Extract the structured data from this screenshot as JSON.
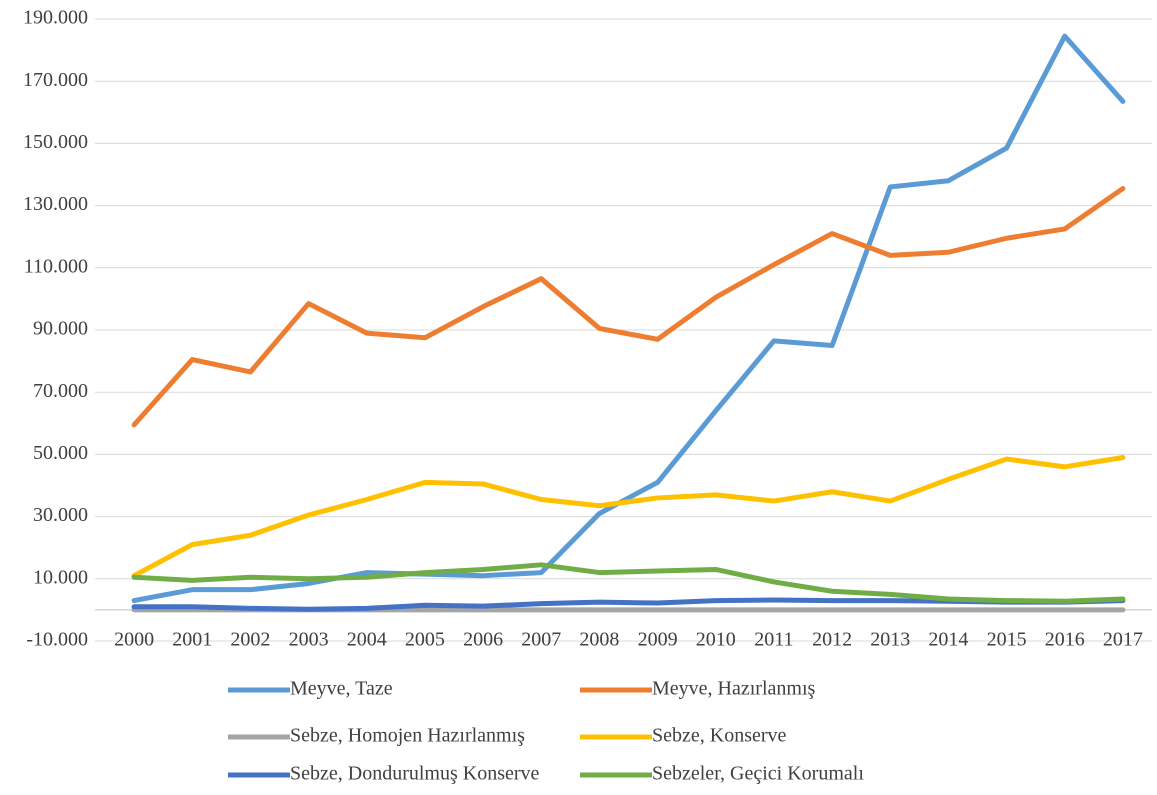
{
  "chart_data": {
    "type": "line",
    "categories": [
      "2000",
      "2001",
      "2002",
      "2003",
      "2004",
      "2005",
      "2006",
      "2007",
      "2008",
      "2009",
      "2010",
      "2011",
      "2012",
      "2013",
      "2014",
      "2015",
      "2016",
      "2017"
    ],
    "series": [
      {
        "name": "Meyve, Taze",
        "color": "#5b9bd5",
        "values": [
          3000,
          6500,
          6500,
          8500,
          12000,
          11500,
          11000,
          12000,
          31000,
          41000,
          64000,
          86500,
          85000,
          136000,
          138000,
          148500,
          184500,
          163500
        ]
      },
      {
        "name": "Meyve, Hazırlanmış",
        "color": "#ed7d31",
        "values": [
          59500,
          80500,
          76500,
          98500,
          89000,
          87500,
          97500,
          106500,
          90500,
          87000,
          100500,
          111000,
          121000,
          114000,
          115000,
          119500,
          122500,
          135500
        ]
      },
      {
        "name": "Sebze, Homojen Hazırlanmış",
        "color": "#a5a5a5",
        "values": [
          0,
          0,
          0,
          0,
          0,
          0,
          0,
          0,
          0,
          0,
          0,
          0,
          0,
          0,
          0,
          0,
          0,
          0
        ]
      },
      {
        "name": "Sebze, Konserve",
        "color": "#ffc000",
        "values": [
          11000,
          21000,
          24000,
          30500,
          35500,
          41000,
          40500,
          35500,
          33500,
          36000,
          37000,
          35000,
          38000,
          35000,
          42000,
          48500,
          46000,
          49000
        ]
      },
      {
        "name": "Sebze, Dondurulmuş Konserve",
        "color": "#4472c4",
        "values": [
          1000,
          1000,
          500,
          200,
          500,
          1500,
          1200,
          2000,
          2500,
          2200,
          3000,
          3200,
          3000,
          3000,
          2800,
          2500,
          2500,
          3000
        ]
      },
      {
        "name": "Sebzeler, Geçici Korumalı",
        "color": "#70ad47",
        "values": [
          10500,
          9500,
          10500,
          10000,
          10500,
          12000,
          13000,
          14500,
          12000,
          12500,
          13000,
          9000,
          6000,
          5000,
          3500,
          3000,
          2800,
          3500
        ]
      }
    ],
    "ylim": [
      -10000,
      190000
    ],
    "yticks": [
      {
        "value": -10000,
        "label": "-10.000"
      },
      {
        "value": 10000,
        "label": "10.000"
      },
      {
        "value": 30000,
        "label": "30.000"
      },
      {
        "value": 50000,
        "label": "50.000"
      },
      {
        "value": 70000,
        "label": "70.000"
      },
      {
        "value": 90000,
        "label": "90.000"
      },
      {
        "value": 110000,
        "label": "110.000"
      },
      {
        "value": 130000,
        "label": "130.000"
      },
      {
        "value": 150000,
        "label": "150.000"
      },
      {
        "value": 170000,
        "label": "170.000"
      },
      {
        "value": 190000,
        "label": "190.000"
      }
    ],
    "grid": true
  }
}
